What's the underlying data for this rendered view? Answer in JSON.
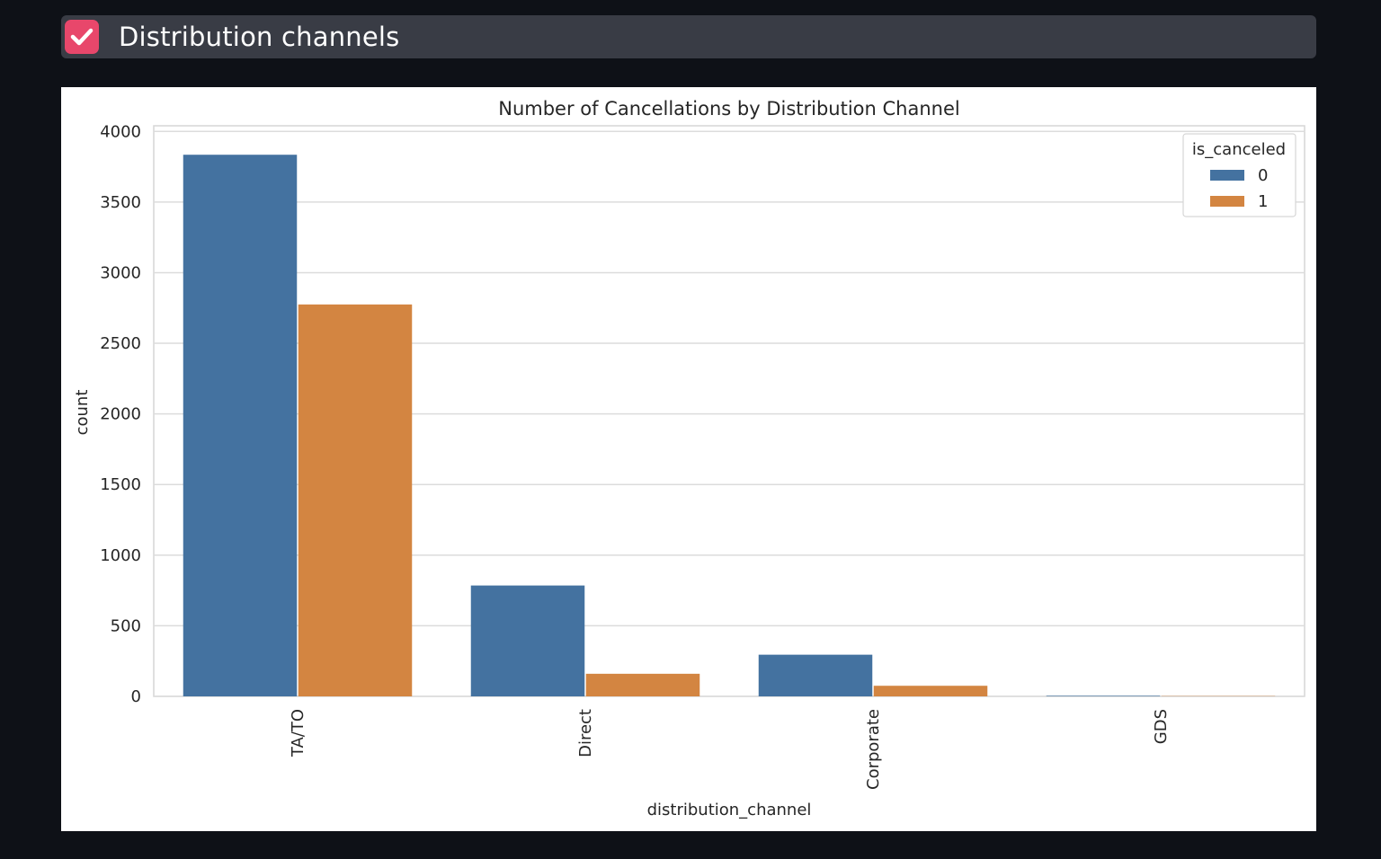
{
  "section": {
    "title": "Distribution channels",
    "checked": true,
    "icon": "checkbox-checked-icon",
    "accent_color": "#e8476b"
  },
  "chart_data": {
    "type": "bar",
    "title": "Number of Cancellations by Distribution Channel",
    "xlabel": "distribution_channel",
    "ylabel": "count",
    "categories": [
      "TA/TO",
      "Direct",
      "Corporate",
      "GDS"
    ],
    "series": [
      {
        "name": "0",
        "values": [
          3835,
          785,
          295,
          4
        ],
        "color": "#4472a0"
      },
      {
        "name": "1",
        "values": [
          2775,
          160,
          75,
          2
        ],
        "color": "#d38541"
      }
    ],
    "ylim": [
      0,
      4040
    ],
    "yticks": [
      0,
      500,
      1000,
      1500,
      2000,
      2500,
      3000,
      3500,
      4000
    ],
    "legend": {
      "title": "is_canceled",
      "placement": "top-right"
    },
    "grid": true
  }
}
